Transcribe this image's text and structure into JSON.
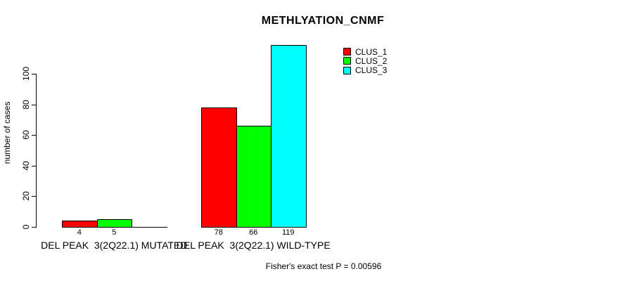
{
  "page": {
    "background": "#ffffff"
  },
  "chart_data": {
    "type": "bar",
    "title": "METHLYATION_CNMF",
    "xlabel": "",
    "ylabel": "number of cases",
    "ylim": [
      0,
      100
    ],
    "yticks": [
      0,
      20,
      40,
      60,
      80,
      100
    ],
    "grid": false,
    "legend_position": "top-right",
    "categories": [
      "DEL PEAK  3(2Q22.1) MUTATED",
      "DEL PEAK  3(2Q22.1) WILD-TYPE"
    ],
    "series": [
      {
        "name": "CLUS_1",
        "color": "#ff0000",
        "values": [
          4,
          78
        ]
      },
      {
        "name": "CLUS_2",
        "color": "#00ff00",
        "values": [
          5,
          66
        ]
      },
      {
        "name": "CLUS_3",
        "color": "#00ffff",
        "values": [
          0,
          119
        ]
      }
    ],
    "value_labels": [
      [
        "4",
        "5",
        ""
      ],
      [
        "78",
        "66",
        "119"
      ]
    ],
    "annotation": "Fisher's exact test P = 0.00596"
  }
}
